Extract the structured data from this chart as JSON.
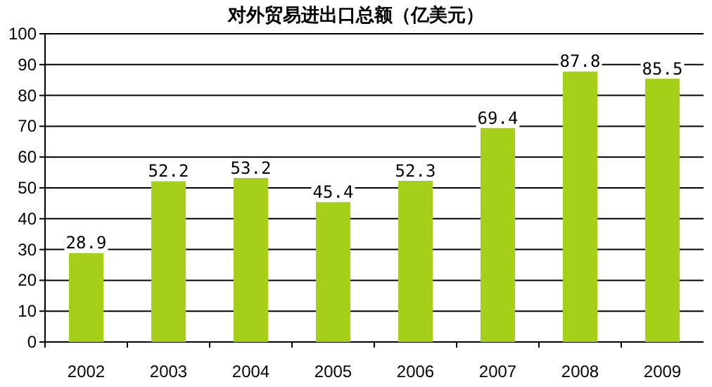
{
  "chart_data": {
    "type": "bar",
    "title": "对外贸易进出口总额（亿美元）",
    "categories": [
      "2002",
      "2003",
      "2004",
      "2005",
      "2006",
      "2007",
      "2008",
      "2009"
    ],
    "values": [
      28.9,
      52.2,
      53.2,
      45.4,
      52.3,
      69.4,
      87.8,
      85.5
    ],
    "color": "#a6cf1a",
    "ylim": [
      0,
      100
    ],
    "yticks": [
      0,
      10,
      20,
      30,
      40,
      50,
      60,
      70,
      80,
      90,
      100
    ],
    "grid": "y",
    "data_labels": true
  }
}
